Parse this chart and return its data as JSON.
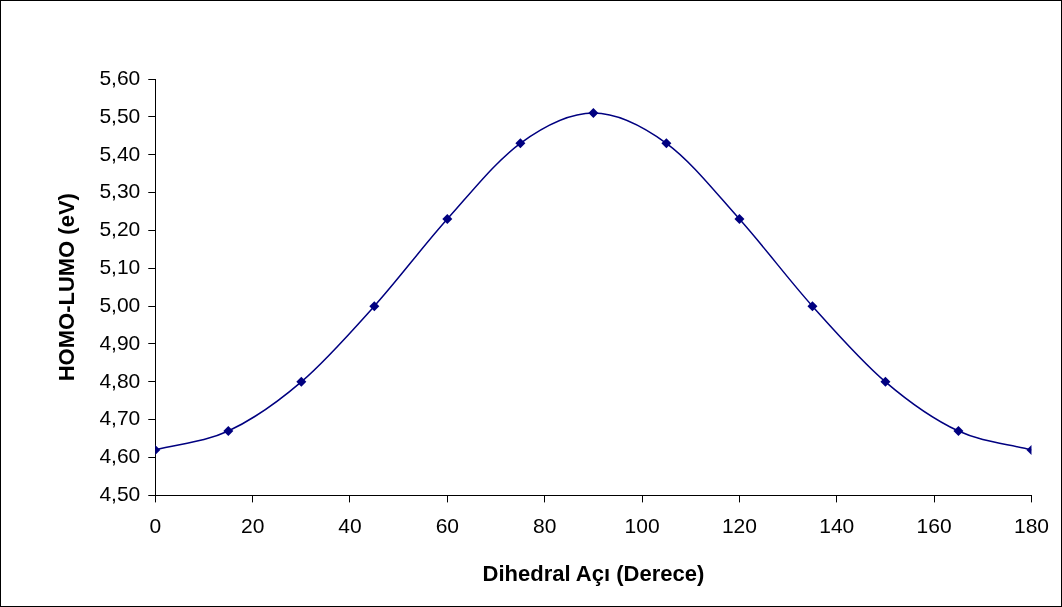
{
  "chart_data": {
    "type": "line",
    "xlabel": "Dihedral Açı (Derece)",
    "ylabel": "HOMO-LUMO (eV)",
    "x": [
      0,
      15,
      30,
      45,
      60,
      75,
      90,
      105,
      120,
      135,
      150,
      165,
      180
    ],
    "series": [
      {
        "color": "#000080",
        "values": [
          4.62,
          4.67,
          4.8,
          5.0,
          5.23,
          5.43,
          5.51,
          5.43,
          5.23,
          5.0,
          4.8,
          4.67,
          4.62
        ]
      }
    ],
    "xlim": [
      0,
      180
    ],
    "xticks": [
      0,
      20,
      40,
      60,
      80,
      100,
      120,
      140,
      160,
      180
    ],
    "ylim": [
      4.5,
      5.6
    ],
    "yticks": [
      {
        "value": 4.5,
        "label": "4,50"
      },
      {
        "value": 4.6,
        "label": "4,60"
      },
      {
        "value": 4.7,
        "label": "4,70"
      },
      {
        "value": 4.8,
        "label": "4,80"
      },
      {
        "value": 4.9,
        "label": "4,90"
      },
      {
        "value": 5.0,
        "label": "5,00"
      },
      {
        "value": 5.1,
        "label": "5,10"
      },
      {
        "value": 5.2,
        "label": "5,20"
      },
      {
        "value": 5.3,
        "label": "5,30"
      },
      {
        "value": 5.4,
        "label": "5,40"
      },
      {
        "value": 5.5,
        "label": "5,50"
      },
      {
        "value": 5.6,
        "label": "5,60"
      }
    ],
    "grid": false,
    "legend": false,
    "marker": "diamond",
    "line_style": "solid"
  }
}
